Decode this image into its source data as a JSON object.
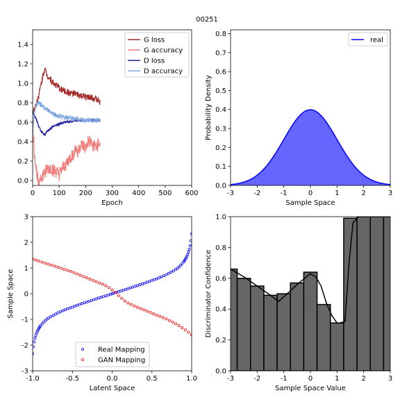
{
  "figure_title": "00251",
  "chart_data": [
    {
      "id": "losses",
      "type": "line",
      "xlabel": "Epoch",
      "ylabel": "",
      "xlim": [
        0,
        600
      ],
      "ylim": [
        -0.05,
        1.55
      ],
      "xticks": [
        0,
        100,
        200,
        300,
        400,
        500,
        600
      ],
      "yticks": [
        0.0,
        0.2,
        0.4,
        0.6,
        0.8,
        1.0,
        1.2,
        1.4
      ],
      "ytick_decimals": 1,
      "legend_position": "top-right",
      "series": [
        {
          "name": "G loss",
          "color": "#a52a2a",
          "noise": 0.035,
          "x": [
            0,
            5,
            10,
            15,
            20,
            25,
            30,
            35,
            40,
            45,
            50,
            55,
            60,
            70,
            80,
            90,
            100,
            120,
            140,
            160,
            180,
            200,
            220,
            240,
            250,
            255
          ],
          "y": [
            0.7,
            0.72,
            0.76,
            0.8,
            0.85,
            0.9,
            0.97,
            1.03,
            1.1,
            1.15,
            1.12,
            1.08,
            1.07,
            1.03,
            1.0,
            0.98,
            0.95,
            0.92,
            0.9,
            0.89,
            0.87,
            0.86,
            0.85,
            0.84,
            0.82,
            0.8
          ]
        },
        {
          "name": "G accuracy",
          "color": "#f08080",
          "noise": 0.07,
          "x": [
            0,
            3,
            6,
            10,
            14,
            18,
            22,
            26,
            30,
            40,
            50,
            60,
            70,
            80,
            90,
            100,
            110,
            120,
            130,
            140,
            150,
            160,
            170,
            180,
            190,
            200,
            210,
            220,
            230,
            240,
            250,
            255
          ],
          "y": [
            0.62,
            0.45,
            0.3,
            0.2,
            0.1,
            0.05,
            0.02,
            0.02,
            0.03,
            0.05,
            0.1,
            0.12,
            0.12,
            0.1,
            0.08,
            0.05,
            0.1,
            0.15,
            0.18,
            0.22,
            0.25,
            0.32,
            0.3,
            0.35,
            0.35,
            0.32,
            0.4,
            0.38,
            0.36,
            0.34,
            0.38,
            0.35
          ]
        },
        {
          "name": "D loss",
          "color": "#1c1ca0",
          "noise": 0.012,
          "x": [
            0,
            5,
            10,
            15,
            20,
            25,
            30,
            35,
            40,
            45,
            50,
            60,
            70,
            80,
            100,
            120,
            150,
            180,
            200,
            230,
            255
          ],
          "y": [
            0.7,
            0.68,
            0.65,
            0.62,
            0.58,
            0.54,
            0.52,
            0.5,
            0.48,
            0.47,
            0.49,
            0.52,
            0.54,
            0.56,
            0.58,
            0.6,
            0.61,
            0.62,
            0.62,
            0.62,
            0.62
          ]
        },
        {
          "name": "D accuracy",
          "color": "#7fa9e0",
          "noise": 0.025,
          "x": [
            0,
            5,
            10,
            15,
            20,
            25,
            30,
            35,
            40,
            50,
            60,
            70,
            80,
            100,
            120,
            150,
            180,
            200,
            230,
            255
          ],
          "y": [
            0.45,
            0.68,
            0.76,
            0.78,
            0.8,
            0.79,
            0.78,
            0.78,
            0.76,
            0.73,
            0.72,
            0.7,
            0.68,
            0.66,
            0.65,
            0.64,
            0.63,
            0.62,
            0.62,
            0.62
          ]
        }
      ]
    },
    {
      "id": "density",
      "type": "area",
      "xlabel": "Sample Space",
      "ylabel": "Probability Density",
      "xlim": [
        -3,
        3
      ],
      "ylim": [
        0,
        0.82
      ],
      "xticks": [
        -3,
        -2,
        -1,
        0,
        1,
        2,
        3
      ],
      "yticks": [
        0.0,
        0.1,
        0.2,
        0.3,
        0.4,
        0.5,
        0.6,
        0.7,
        0.8
      ],
      "ytick_decimals": 1,
      "legend_position": "top-right",
      "series": [
        {
          "name": "real",
          "color": "#0000ff",
          "fill": "#6666ff",
          "x": [
            -3.0,
            -2.5,
            -2.0,
            -1.5,
            -1.0,
            -0.5,
            0.0,
            0.5,
            1.0,
            1.5,
            2.0,
            2.5,
            3.0
          ],
          "y": [
            0.0044,
            0.0175,
            0.054,
            0.1295,
            0.242,
            0.3521,
            0.3989,
            0.3521,
            0.242,
            0.1295,
            0.054,
            0.0175,
            0.0044
          ]
        }
      ]
    },
    {
      "id": "mapping",
      "type": "scatter",
      "xlabel": "Latent Space",
      "ylabel": "Sample Space",
      "xlim": [
        -1.0,
        1.0
      ],
      "ylim": [
        -3,
        3
      ],
      "xticks": [
        -1.0,
        -0.5,
        0.0,
        0.5,
        1.0
      ],
      "yticks": [
        -3,
        -2,
        -1,
        0,
        1,
        2,
        3
      ],
      "xtick_decimals": 1,
      "ytick_decimals": 0,
      "legend_position": "bottom-center",
      "series": [
        {
          "name": "Real Mapping",
          "color": "#0000ff",
          "x": [
            -1.0,
            -0.99,
            -0.98,
            -0.97,
            -0.96,
            -0.95,
            -0.94,
            -0.93,
            -0.92,
            -0.91,
            -0.9,
            -0.88,
            -0.86,
            -0.84,
            -0.82,
            -0.8,
            -0.77,
            -0.74,
            -0.71,
            -0.68,
            -0.65,
            -0.62,
            -0.59,
            -0.56,
            -0.53,
            -0.5,
            -0.47,
            -0.44,
            -0.41,
            -0.38,
            -0.35,
            -0.32,
            -0.29,
            -0.26,
            -0.23,
            -0.2,
            -0.17,
            -0.14,
            -0.11,
            -0.08,
            -0.05,
            -0.02,
            0.0,
            0.02,
            0.05,
            0.08,
            0.11,
            0.14,
            0.17,
            0.2,
            0.23,
            0.26,
            0.29,
            0.32,
            0.35,
            0.38,
            0.41,
            0.44,
            0.47,
            0.5,
            0.53,
            0.56,
            0.59,
            0.62,
            0.65,
            0.68,
            0.71,
            0.74,
            0.77,
            0.8,
            0.82,
            0.84,
            0.86,
            0.88,
            0.9,
            0.91,
            0.92,
            0.93,
            0.94,
            0.95,
            0.96,
            0.97,
            0.98,
            0.99,
            1.0
          ],
          "y": [
            -2.33,
            -2.06,
            -1.87,
            -1.73,
            -1.62,
            -1.53,
            -1.46,
            -1.4,
            -1.34,
            -1.29,
            -1.24,
            -1.17,
            -1.1,
            -1.04,
            -0.99,
            -0.95,
            -0.89,
            -0.84,
            -0.79,
            -0.74,
            -0.7,
            -0.66,
            -0.62,
            -0.58,
            -0.55,
            -0.52,
            -0.48,
            -0.45,
            -0.42,
            -0.38,
            -0.35,
            -0.32,
            -0.29,
            -0.26,
            -0.23,
            -0.2,
            -0.17,
            -0.14,
            -0.11,
            -0.08,
            -0.05,
            -0.02,
            0.0,
            0.02,
            0.05,
            0.08,
            0.11,
            0.14,
            0.17,
            0.2,
            0.23,
            0.26,
            0.29,
            0.32,
            0.35,
            0.38,
            0.42,
            0.45,
            0.48,
            0.52,
            0.55,
            0.58,
            0.62,
            0.66,
            0.7,
            0.74,
            0.79,
            0.84,
            0.89,
            0.95,
            0.99,
            1.04,
            1.1,
            1.17,
            1.24,
            1.29,
            1.34,
            1.4,
            1.46,
            1.53,
            1.62,
            1.73,
            1.87,
            2.06,
            2.33
          ]
        },
        {
          "name": "GAN Mapping",
          "color": "#ff0000",
          "x": [
            -1.0,
            -0.96,
            -0.92,
            -0.88,
            -0.84,
            -0.8,
            -0.76,
            -0.72,
            -0.68,
            -0.64,
            -0.6,
            -0.56,
            -0.52,
            -0.48,
            -0.44,
            -0.4,
            -0.36,
            -0.32,
            -0.28,
            -0.24,
            -0.2,
            -0.16,
            -0.12,
            -0.08,
            -0.04,
            0.0,
            0.04,
            0.08,
            0.12,
            0.16,
            0.2,
            0.24,
            0.28,
            0.32,
            0.36,
            0.4,
            0.44,
            0.48,
            0.52,
            0.56,
            0.6,
            0.64,
            0.68,
            0.72,
            0.76,
            0.8,
            0.84,
            0.88,
            0.92,
            0.96,
            1.0
          ],
          "y": [
            1.35,
            1.31,
            1.27,
            1.23,
            1.19,
            1.15,
            1.11,
            1.07,
            1.03,
            0.99,
            0.95,
            0.91,
            0.87,
            0.82,
            0.77,
            0.72,
            0.67,
            0.62,
            0.57,
            0.52,
            0.47,
            0.42,
            0.37,
            0.31,
            0.24,
            0.15,
            0.05,
            -0.07,
            -0.18,
            -0.28,
            -0.36,
            -0.42,
            -0.48,
            -0.53,
            -0.58,
            -0.63,
            -0.68,
            -0.73,
            -0.78,
            -0.83,
            -0.88,
            -0.93,
            -0.98,
            -1.04,
            -1.1,
            -1.17,
            -1.24,
            -1.32,
            -1.41,
            -1.5,
            -1.6
          ]
        }
      ]
    },
    {
      "id": "discriminator",
      "type": "bar",
      "xlabel": "Sample Space Value",
      "ylabel": "Discriminator Confidence",
      "xlim": [
        -3,
        3
      ],
      "ylim": [
        0,
        1.0
      ],
      "xticks": [
        -3,
        -2,
        -1,
        0,
        1,
        2,
        3
      ],
      "yticks": [
        0.0,
        0.2,
        0.4,
        0.6,
        0.8,
        1.0
      ],
      "ytick_decimals": 1,
      "bar_fill": "#666666",
      "bar_edge": "#000000",
      "bars": {
        "x": [
          -3.0,
          -2.5,
          -2.0,
          -1.5,
          -1.0,
          -0.5,
          0.0,
          0.5,
          1.0,
          1.5,
          2.0,
          2.5,
          3.0
        ],
        "y": [
          0.66,
          0.6,
          0.55,
          0.49,
          0.5,
          0.57,
          0.64,
          0.43,
          0.31,
          0.99,
          1.0,
          1.0,
          1.0
        ]
      },
      "curve": {
        "x": [
          -3.0,
          -2.5,
          -2.0,
          -1.5,
          -1.2,
          -1.0,
          -0.5,
          0.0,
          0.2,
          0.4,
          0.6,
          0.8,
          1.0,
          1.1,
          1.3,
          1.45,
          1.6,
          1.8,
          2.0,
          2.5,
          3.0
        ],
        "y": [
          0.66,
          0.61,
          0.55,
          0.49,
          0.45,
          0.48,
          0.56,
          0.63,
          0.61,
          0.55,
          0.44,
          0.36,
          0.31,
          0.31,
          0.32,
          0.7,
          0.96,
          1.0,
          1.0,
          1.0,
          1.0
        ]
      }
    }
  ]
}
